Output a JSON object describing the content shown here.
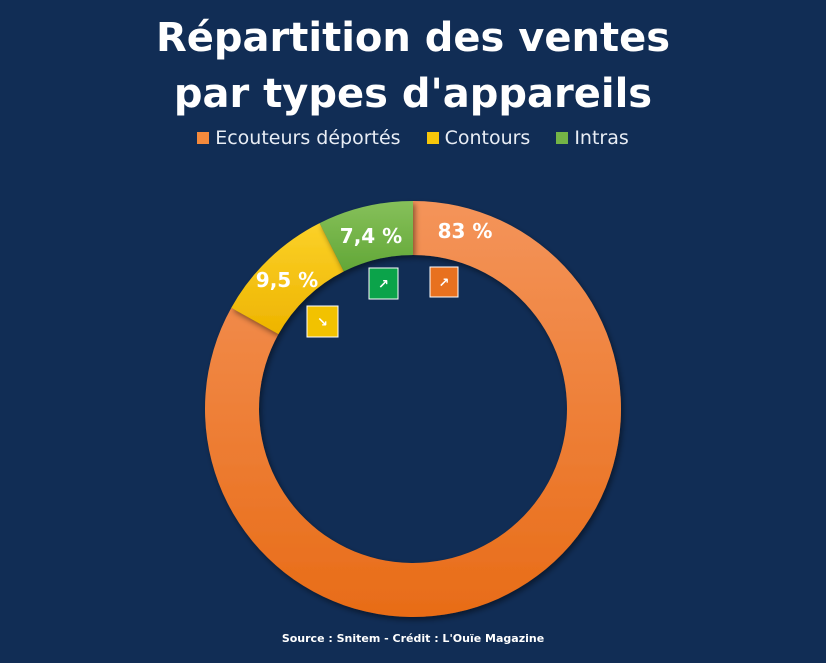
{
  "chart_data": {
    "type": "pie",
    "title": "Répartition des ventes par types d'appareils",
    "categories": [
      "Ecouteurs déportés",
      "Contours",
      "Intras"
    ],
    "values": [
      83,
      9.5,
      7.4
    ],
    "value_labels": [
      "83 %",
      "9,5 %",
      "7,4 %"
    ],
    "donut": true,
    "legend_position": "top",
    "trends": [
      {
        "series": "Ecouteurs déportés",
        "direction": "up",
        "glyph": "↗",
        "color": "#e8711f"
      },
      {
        "series": "Contours",
        "direction": "down",
        "glyph": "↘",
        "color": "#f2c200"
      },
      {
        "series": "Intras",
        "direction": "up",
        "glyph": "↗",
        "color": "#0ba34a"
      }
    ],
    "colors": [
      "#f58a3c",
      "#f7c60a",
      "#74b446"
    ],
    "source": "Source : Snitem - Crédit : L'Ouïe Magazine"
  },
  "colors": {
    "background": "#112d55",
    "text": "#ffffff"
  }
}
